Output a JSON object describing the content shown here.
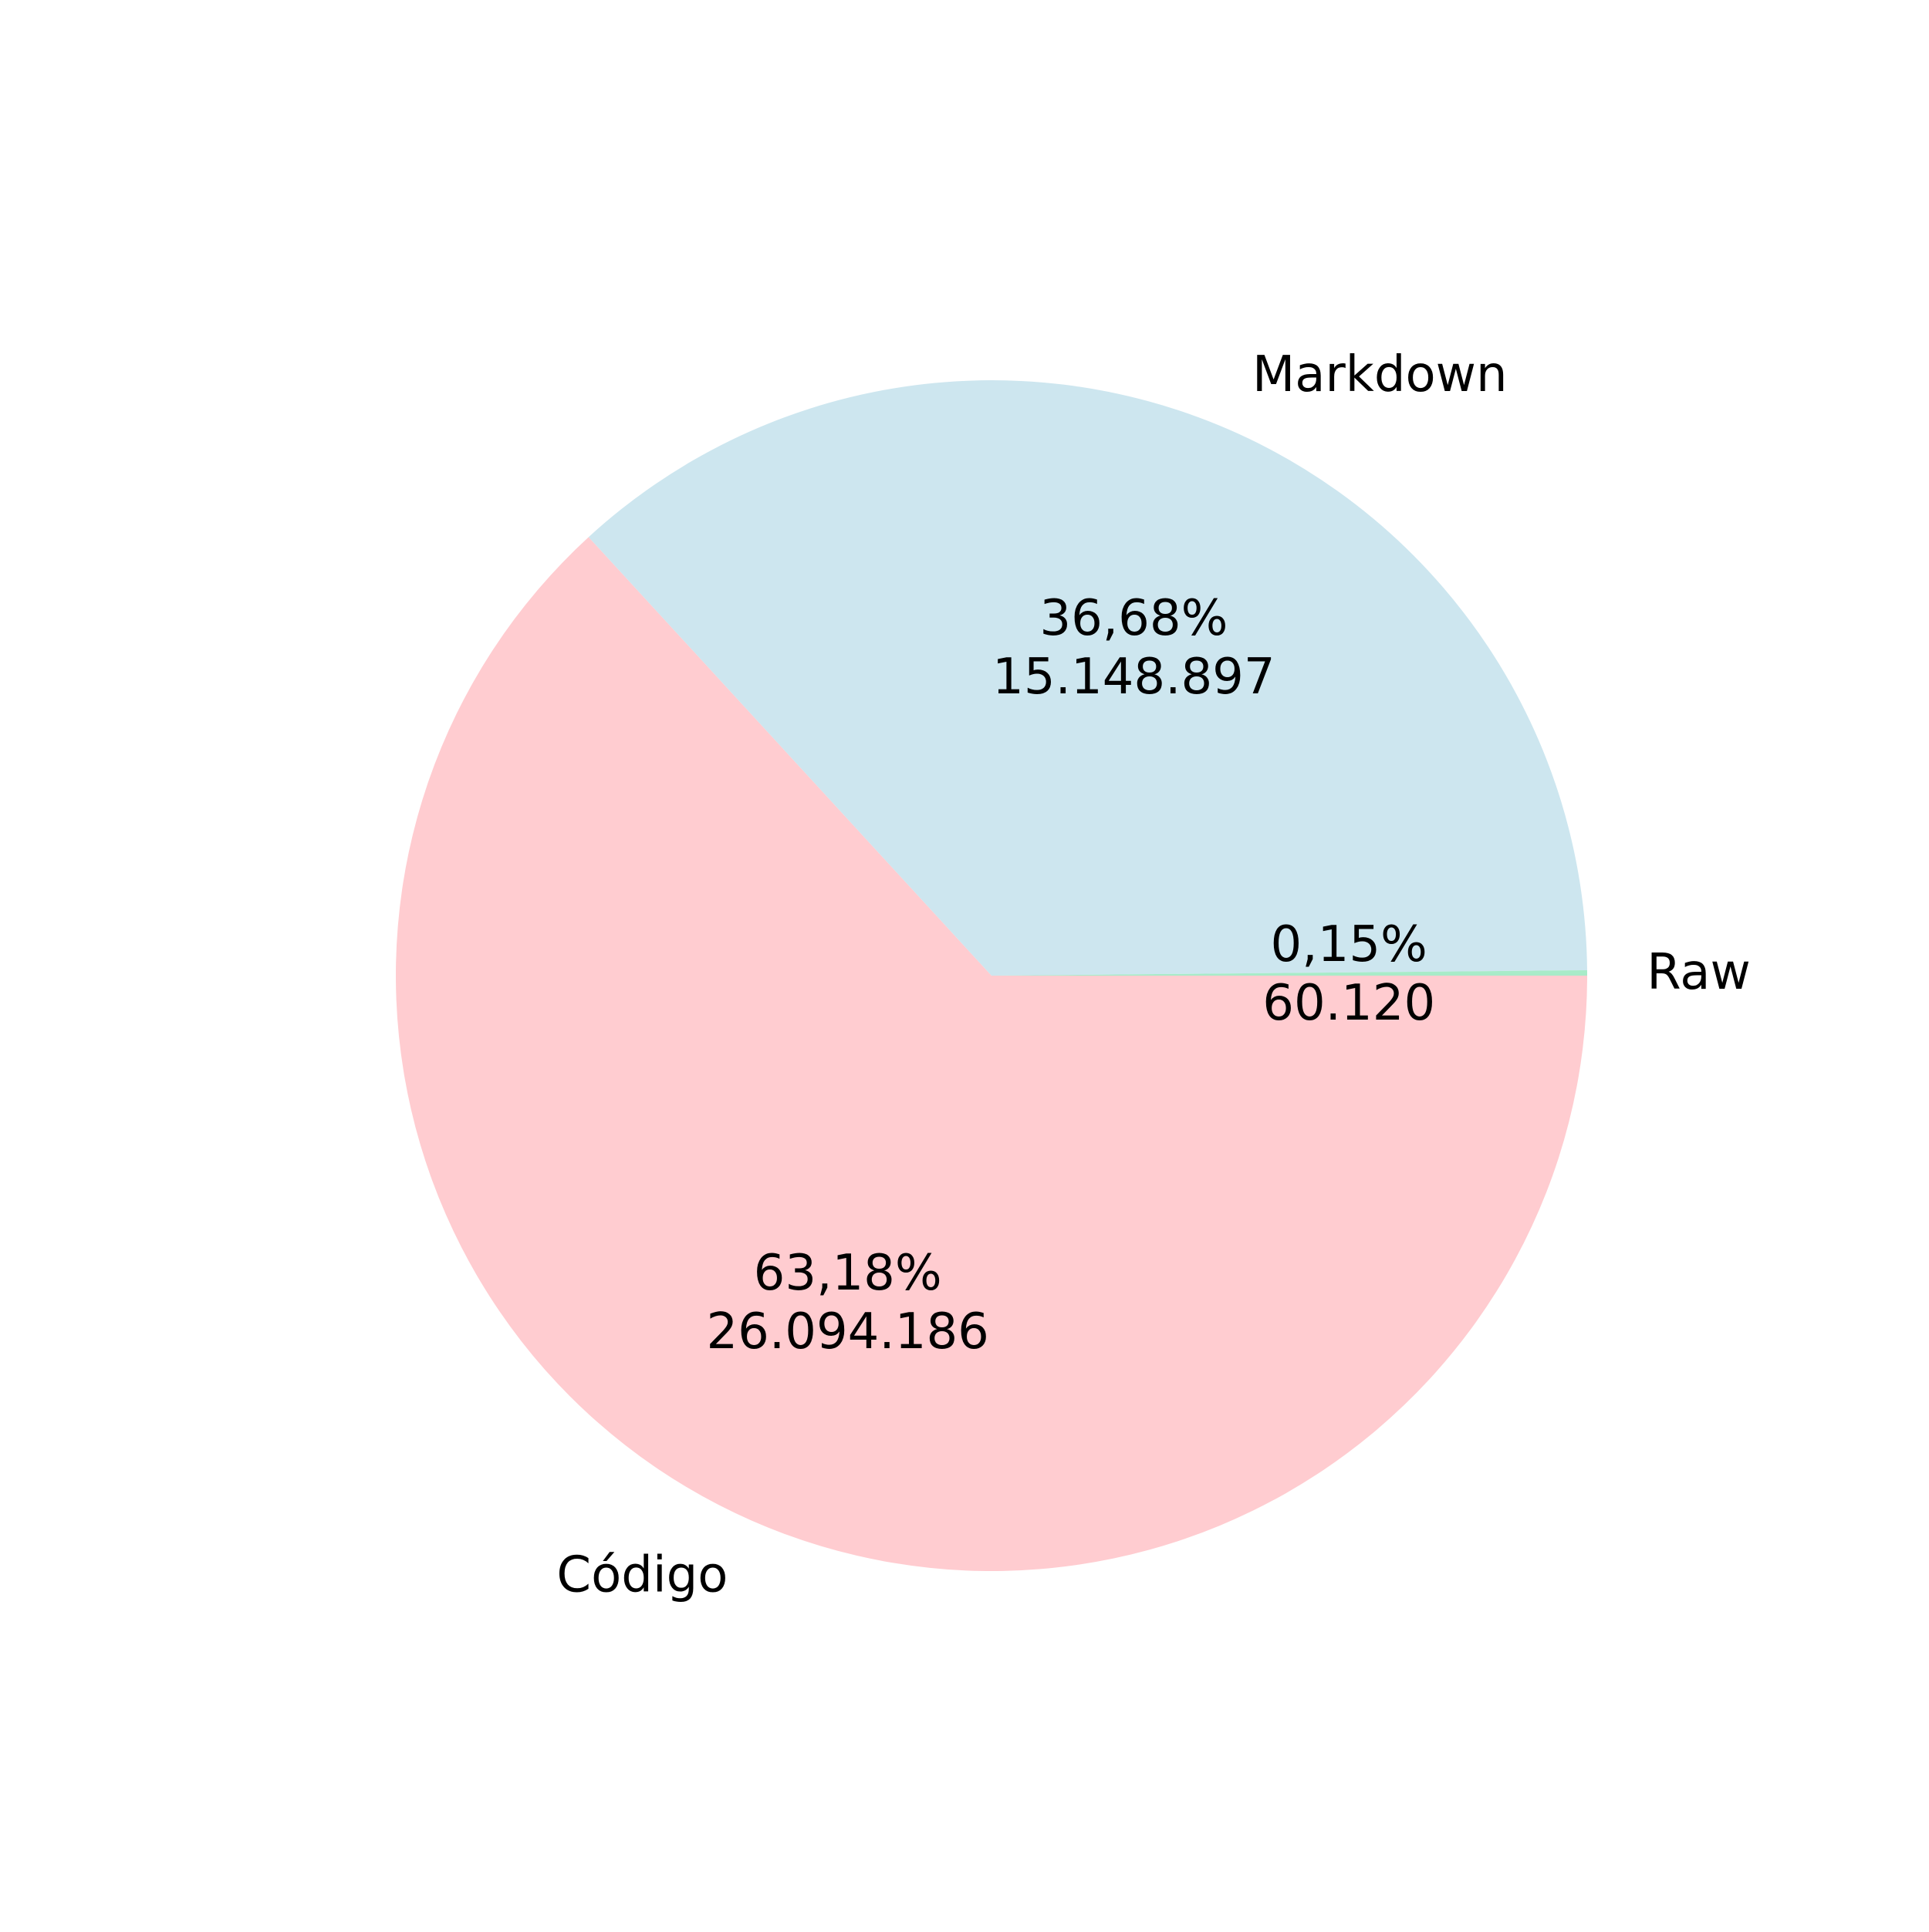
{
  "chart_data": {
    "type": "pie",
    "title": "",
    "start_angle_deg": 0,
    "direction": "clockwise",
    "slices": [
      {
        "label": "Código",
        "value": 26094186,
        "percent_label": "63,18%",
        "value_label": "26.094.186",
        "color": "#FFCCD0"
      },
      {
        "label": "Markdown",
        "value": 15148897,
        "percent_label": "36,68%",
        "value_label": "15.148.897",
        "color": "#CDE6EF"
      },
      {
        "label": "Raw",
        "value": 60120,
        "percent_label": "0,15%",
        "value_label": "60.120",
        "color": "#A8EBC8"
      }
    ]
  }
}
